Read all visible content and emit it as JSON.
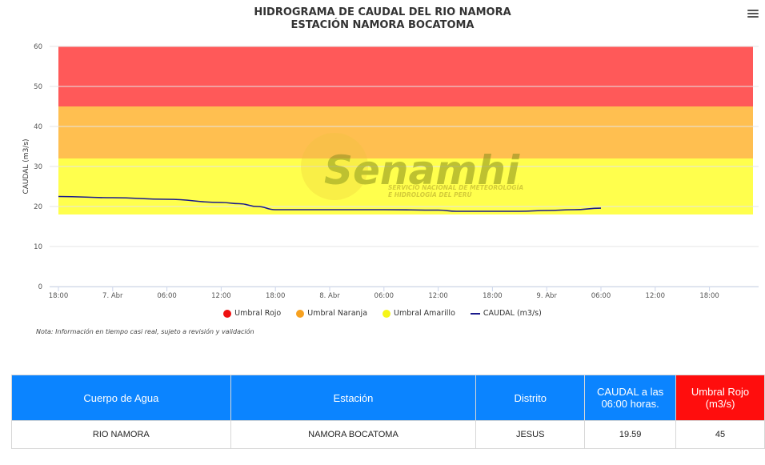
{
  "chart_data": {
    "type": "line",
    "title_line1": "HIDROGRAMA DE CAUDAL DEL RIO NAMORA",
    "title_line2": "ESTACIÓN NAMORA BOCATOMA",
    "ylabel": "CAUDAL (m3/s)",
    "xlabel": "",
    "ylim": [
      0,
      60
    ],
    "yticks": [
      0,
      10,
      20,
      30,
      40,
      50,
      60
    ],
    "xlim_hours": [
      0,
      79
    ],
    "xticks": [
      {
        "h": 0,
        "label": "18:00"
      },
      {
        "h": 6,
        "label": "7. Abr"
      },
      {
        "h": 12,
        "label": "06:00"
      },
      {
        "h": 18,
        "label": "12:00"
      },
      {
        "h": 24,
        "label": "18:00"
      },
      {
        "h": 30,
        "label": "8. Abr"
      },
      {
        "h": 36,
        "label": "06:00"
      },
      {
        "h": 42,
        "label": "12:00"
      },
      {
        "h": 48,
        "label": "18:00"
      },
      {
        "h": 54,
        "label": "9. Abr"
      },
      {
        "h": 60,
        "label": "06:00"
      },
      {
        "h": 66,
        "label": "12:00"
      },
      {
        "h": 72,
        "label": "18:00"
      }
    ],
    "grid": true,
    "legend_position": "bottom-center",
    "bands": [
      {
        "name": "Umbral Amarillo",
        "from": 18,
        "to": 32,
        "color": "#ffff4d"
      },
      {
        "name": "Umbral Naranja",
        "from": 32,
        "to": 45,
        "color": "#ffbf50"
      },
      {
        "name": "Umbral Rojo",
        "from": 45,
        "to": 60,
        "color": "#ff5959"
      }
    ],
    "series": [
      {
        "name": "CAUDAL (m3/s)",
        "color": "#1a1a8c",
        "points": [
          [
            0,
            22.5
          ],
          [
            6,
            22.2
          ],
          [
            12,
            21.8
          ],
          [
            18,
            21.0
          ],
          [
            20,
            20.7
          ],
          [
            22,
            20.0
          ],
          [
            24,
            19.2
          ],
          [
            30,
            19.2
          ],
          [
            36,
            19.2
          ],
          [
            42,
            19.1
          ],
          [
            44,
            18.8
          ],
          [
            48,
            18.8
          ],
          [
            51,
            18.8
          ],
          [
            54,
            19.0
          ],
          [
            57,
            19.2
          ],
          [
            60,
            19.59
          ]
        ]
      }
    ]
  },
  "legend": {
    "rojo": {
      "label": "Umbral Rojo",
      "color": "#ee1111"
    },
    "naranja": {
      "label": "Umbral Naranja",
      "color": "#f7a120"
    },
    "amarillo": {
      "label": "Umbral Amarillo",
      "color": "#f5f518"
    },
    "caudal": {
      "label": "CAUDAL (m3/s)",
      "color": "#1a1a8c"
    }
  },
  "note": "Nota: Información en tiempo casi real, sujeto a revisión y validación",
  "watermark": {
    "brand": "Senamhi",
    "line1": "SERVICIO NACIONAL DE METEOROLOGÍA",
    "line2": "E HIDROLOGÍA DEL PERÚ"
  },
  "table": {
    "headers": {
      "cuerpo": "Cuerpo de Agua",
      "estacion": "Estación",
      "distrito": "Distrito",
      "caudal": "CAUDAL a las 06:00 horas.",
      "umbral": "Umbral Rojo (m3/s)"
    },
    "row": {
      "cuerpo": "RIO NAMORA",
      "estacion": "NAMORA BOCATOMA",
      "distrito": "JESUS",
      "caudal": "19.59",
      "umbral": "45"
    }
  }
}
